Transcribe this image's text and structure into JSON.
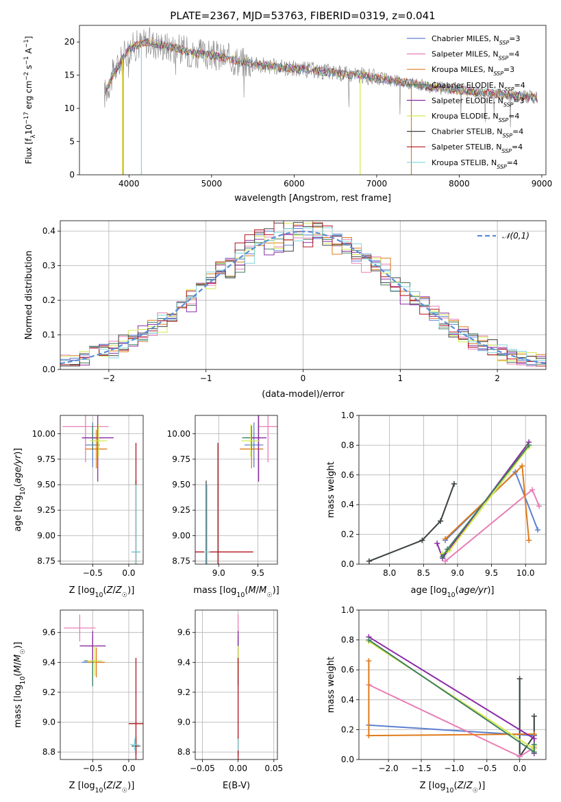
{
  "figure_title": "PLATE=2367, MJD=53763, FIBERID=0319, z=0.041",
  "colors": {
    "chabrier_miles": "#5b7fd0",
    "salpeter_miles": "#e87db5",
    "kroupa_miles": "#e07a1a",
    "chabrier_elodie": "#3f7f5f",
    "salpeter_elodie": "#8b2aa6",
    "kroupa_elodie": "#d4e84a",
    "chabrier_stelib": "#404040",
    "salpeter_stelib": "#b0101a",
    "kroupa_stelib": "#7fd4dc",
    "data": "#808080",
    "normal": "#5b8ad8",
    "grid": "#b0b0b0"
  },
  "chart_data": [
    {
      "id": "spectrum",
      "type": "line",
      "title": "PLATE=2367, MJD=53763, FIBERID=0319, z=0.041",
      "xlabel": "wavelength [Angstrom, rest frame]",
      "ylabel": "Flux [f_λ 10^-17 erg cm^-2 s^-1 A^-1]",
      "xlim": [
        3400,
        9050
      ],
      "ylim": [
        0,
        22.5
      ],
      "xticks": [
        "4000",
        "5000",
        "6000",
        "7000",
        "8000",
        "9000"
      ],
      "yticks": [
        "0",
        "5",
        "10",
        "15",
        "20"
      ],
      "grid": false,
      "legend_position": "top-right",
      "legend": [
        {
          "model": "Chabrier MILES",
          "nssp": "3",
          "color": "#5b7fd0"
        },
        {
          "model": "Salpeter MILES",
          "nssp": "4",
          "color": "#e87db5"
        },
        {
          "model": "Kroupa MILES",
          "nssp": "3",
          "color": "#e07a1a"
        },
        {
          "model": "Chabrier ELODIE",
          "nssp": "4",
          "color": "#3f7f5f"
        },
        {
          "model": "Salpeter ELODIE",
          "nssp": "3",
          "color": "#8b2aa6"
        },
        {
          "model": "Kroupa ELODIE",
          "nssp": "4",
          "color": "#d4e84a"
        },
        {
          "model": "Chabrier STELIB",
          "nssp": "4",
          "color": "#404040"
        },
        {
          "model": "Salpeter STELIB",
          "nssp": "4",
          "color": "#b0101a"
        },
        {
          "model": "Kroupa STELIB",
          "nssp": "4",
          "color": "#7fd4dc"
        }
      ],
      "continuum": {
        "x": [
          3700,
          3800,
          3900,
          4000,
          4100,
          4200,
          4300,
          4400,
          4600,
          4800,
          5000,
          5200,
          5400,
          5600,
          5800,
          6000,
          6200,
          6400,
          6600,
          6800,
          7000,
          7200,
          7400,
          7600,
          7800,
          8000,
          8200,
          8400,
          8600,
          8800,
          8950
        ],
        "y": [
          12,
          15,
          17,
          19,
          19.5,
          20,
          19.8,
          19.5,
          19,
          18.2,
          18,
          17.5,
          17,
          16.5,
          16.2,
          16,
          15.8,
          15.5,
          15.2,
          15,
          14.6,
          14.2,
          13.8,
          13.4,
          13,
          12.8,
          12.5,
          12.3,
          12,
          11.8,
          11.6
        ]
      },
      "model_cutoffs": [
        {
          "x": 3930,
          "color": "#e07a1a"
        },
        {
          "x": 3920,
          "color": "#d4e84a"
        },
        {
          "x": 4150,
          "color": "#7fd4dc"
        },
        {
          "x": 6800,
          "color": "#d4e84a"
        },
        {
          "x": 7420,
          "color": "#e07a1a"
        }
      ]
    },
    {
      "id": "residuals",
      "type": "histogram",
      "xlabel": "(data-model)/error",
      "ylabel": "Normed distribution",
      "xlim": [
        -2.5,
        2.5
      ],
      "ylim": [
        0,
        0.43
      ],
      "xticks": [
        "−2",
        "−1",
        "0",
        "1",
        "2"
      ],
      "yticks": [
        "0.0",
        "0.1",
        "0.2",
        "0.3",
        "0.4"
      ],
      "grid": true,
      "legend_position": "top-right",
      "legend_label": "𝒩(0,1)",
      "bin_width": 0.1
    },
    {
      "id": "age-vs-Z",
      "type": "scatter",
      "xlabel": "Z [log10(Z/Z☉)]",
      "ylabel": "age  [log10(age/yr)]",
      "xlim": [
        -0.95,
        0.2
      ],
      "ylim": [
        8.72,
        10.18
      ],
      "xticks": [
        "−0.5",
        "0.0"
      ],
      "yticks": [
        "8.75",
        "9.00",
        "9.25",
        "9.50",
        "9.75",
        "10.00"
      ],
      "grid": true,
      "points": [
        {
          "x": -0.5,
          "y": 9.89,
          "xerr": 0.1,
          "yerr": 0.22,
          "color": "#5b7fd0"
        },
        {
          "x": -0.6,
          "y": 10.07,
          "xerr": 0.32,
          "yerr": 0.35,
          "color": "#e87db5"
        },
        {
          "x": -0.45,
          "y": 9.85,
          "xerr": 0.15,
          "yerr": 0.19,
          "color": "#e07a1a"
        },
        {
          "x": -0.5,
          "y": 9.96,
          "xerr": 0.14,
          "yerr": 0.12,
          "color": "#3f7f5f"
        },
        {
          "x": -0.43,
          "y": 9.96,
          "xerr": 0.22,
          "yerr": 0.43,
          "color": "#8b2aa6"
        },
        {
          "x": -0.42,
          "y": 9.93,
          "xerr": 0.12,
          "yerr": 0.16,
          "color": "#d4e84a"
        },
        {
          "x": 0.1,
          "y": 8.84,
          "xerr": 0.06,
          "yerr": 0.7,
          "color": "#404040"
        },
        {
          "x": 0.1,
          "y": 8.84,
          "xerr": 0.03,
          "yerr": 1.07,
          "color": "#b0101a"
        },
        {
          "x": 0.1,
          "y": 8.84,
          "xerr": 0.06,
          "yerr": 0.66,
          "color": "#7fd4dc"
        }
      ]
    },
    {
      "id": "age-vs-mass",
      "type": "scatter",
      "xlabel": "mass [log10(M/M☉)]",
      "ylabel": "",
      "xlim": [
        8.7,
        9.75
      ],
      "ylim": [
        8.72,
        10.18
      ],
      "xticks": [
        "9.0",
        "9.5"
      ],
      "yticks": [
        "8.75",
        "9.00",
        "9.25",
        "9.50",
        "9.75",
        "10.00"
      ],
      "grid": true,
      "points": [
        {
          "x": 9.45,
          "y": 9.89,
          "xerr": 0.12,
          "yerr": 0.22,
          "color": "#5b7fd0"
        },
        {
          "x": 9.63,
          "y": 10.07,
          "xerr": 0.12,
          "yerr": 0.35,
          "color": "#e87db5"
        },
        {
          "x": 9.42,
          "y": 9.85,
          "xerr": 0.15,
          "yerr": 0.19,
          "color": "#e07a1a"
        },
        {
          "x": 9.42,
          "y": 9.96,
          "xerr": 0.12,
          "yerr": 0.12,
          "color": "#3f7f5f"
        },
        {
          "x": 9.51,
          "y": 9.96,
          "xerr": 0.1,
          "yerr": 0.43,
          "color": "#8b2aa6"
        },
        {
          "x": 9.41,
          "y": 9.93,
          "xerr": 0.12,
          "yerr": 0.16,
          "color": "#d4e84a"
        },
        {
          "x": 8.84,
          "y": 8.84,
          "xerr": 0.06,
          "yerr": 0.7,
          "color": "#404040"
        },
        {
          "x": 8.99,
          "y": 8.84,
          "xerr": 0.45,
          "yerr": 1.07,
          "color": "#b0101a"
        },
        {
          "x": 8.85,
          "y": 8.84,
          "xerr": 0.04,
          "yerr": 0.66,
          "color": "#7fd4dc"
        }
      ]
    },
    {
      "id": "mass-weight-vs-age",
      "type": "line",
      "xlabel": "age  [log10(age/yr)]",
      "ylabel": "mass weight",
      "xlim": [
        7.55,
        10.3
      ],
      "ylim": [
        0,
        1
      ],
      "xticks": [
        "8.0",
        "8.5",
        "9.0",
        "9.5",
        "10.0"
      ],
      "yticks": [
        "0.0",
        "0.2",
        "0.4",
        "0.6",
        "0.8",
        "1.0"
      ],
      "grid": true,
      "series": [
        {
          "color": "#7fd4dc",
          "x": [
            7.7,
            8.48,
            8.75,
            8.95
          ],
          "y": [
            0.02,
            0.16,
            0.29,
            0.54
          ]
        },
        {
          "color": "#404040",
          "x": [
            7.7,
            8.48,
            8.75,
            8.95
          ],
          "y": [
            0.02,
            0.16,
            0.29,
            0.54
          ]
        },
        {
          "color": "#5b7fd0",
          "x": [
            8.82,
            9.85,
            10.18
          ],
          "y": [
            0.16,
            0.62,
            0.23
          ]
        },
        {
          "color": "#e87db5",
          "x": [
            8.82,
            10.1,
            10.2
          ],
          "y": [
            0.02,
            0.5,
            0.39
          ]
        },
        {
          "color": "#e07a1a",
          "x": [
            8.82,
            9.95,
            10.05
          ],
          "y": [
            0.17,
            0.66,
            0.16
          ]
        },
        {
          "color": "#8b2aa6",
          "x": [
            8.7,
            8.78,
            10.05
          ],
          "y": [
            0.14,
            0.04,
            0.82
          ]
        },
        {
          "color": "#d4e84a",
          "x": [
            8.78,
            8.88,
            10.05
          ],
          "y": [
            0.07,
            0.09,
            0.79
          ]
        },
        {
          "color": "#3f7f5f",
          "x": [
            8.78,
            8.85,
            10.05
          ],
          "y": [
            0.05,
            0.1,
            0.8
          ]
        }
      ]
    },
    {
      "id": "mass-vs-Z",
      "type": "scatter",
      "xlabel": "Z [log10(Z/Z☉)]",
      "ylabel": "mass [log10(M/M☉)]",
      "xlim": [
        -0.95,
        0.2
      ],
      "ylim": [
        8.75,
        9.75
      ],
      "xticks": [
        "−0.5",
        "0.0"
      ],
      "yticks": [
        "8.8",
        "9.0",
        "9.2",
        "9.4",
        "9.6"
      ],
      "grid": true,
      "points": [
        {
          "x": -0.5,
          "y": 9.4,
          "xerr": 0.15,
          "yerr": 0.15,
          "color": "#5b7fd0"
        },
        {
          "x": -0.68,
          "y": 9.63,
          "xerr": 0.22,
          "yerr": 0.09,
          "color": "#e87db5"
        },
        {
          "x": -0.45,
          "y": 9.4,
          "xerr": 0.12,
          "yerr": 0.1,
          "color": "#e07a1a"
        },
        {
          "x": -0.5,
          "y": 9.41,
          "xerr": 0.12,
          "yerr": 0.17,
          "color": "#3f7f5f"
        },
        {
          "x": -0.5,
          "y": 9.51,
          "xerr": 0.18,
          "yerr": 0.1,
          "color": "#8b2aa6"
        },
        {
          "x": -0.47,
          "y": 9.41,
          "xerr": 0.1,
          "yerr": 0.1,
          "color": "#d4e84a"
        },
        {
          "x": 0.1,
          "y": 8.84,
          "xerr": 0.06,
          "yerr": 0.06,
          "color": "#404040"
        },
        {
          "x": 0.1,
          "y": 8.99,
          "xerr": 0.1,
          "yerr": 0.44,
          "color": "#b0101a"
        },
        {
          "x": 0.08,
          "y": 8.85,
          "xerr": 0.06,
          "yerr": 0.04,
          "color": "#7fd4dc"
        }
      ]
    },
    {
      "id": "mass-vs-EBV",
      "type": "scatter",
      "xlabel": "E(B-V)",
      "ylabel": "",
      "xlim": [
        -0.06,
        0.055
      ],
      "ylim": [
        8.75,
        9.75
      ],
      "xticks": [
        "−0.05",
        "0.00",
        "0.05"
      ],
      "yticks": [
        "8.8",
        "9.0",
        "9.2",
        "9.4",
        "9.6"
      ],
      "grid": true,
      "points": [
        {
          "x": 0,
          "y": 9.4,
          "xerr": 0,
          "yerr": 0.15,
          "color": "#5b7fd0"
        },
        {
          "x": 0,
          "y": 9.63,
          "xerr": 0,
          "yerr": 0.09,
          "color": "#e87db5"
        },
        {
          "x": 0,
          "y": 9.4,
          "xerr": 0,
          "yerr": 0.1,
          "color": "#e07a1a"
        },
        {
          "x": 0,
          "y": 9.41,
          "xerr": 0,
          "yerr": 0.17,
          "color": "#3f7f5f"
        },
        {
          "x": 0,
          "y": 9.51,
          "xerr": 0,
          "yerr": 0.1,
          "color": "#8b2aa6"
        },
        {
          "x": 0,
          "y": 9.41,
          "xerr": 0,
          "yerr": 0.1,
          "color": "#d4e84a"
        },
        {
          "x": 0,
          "y": 8.84,
          "xerr": 0,
          "yerr": 0.06,
          "color": "#404040"
        },
        {
          "x": 0,
          "y": 8.99,
          "xerr": 0,
          "yerr": 0.44,
          "color": "#b0101a"
        },
        {
          "x": 0,
          "y": 8.85,
          "xerr": 0,
          "yerr": 0.04,
          "color": "#7fd4dc"
        }
      ]
    },
    {
      "id": "mass-weight-vs-Z",
      "type": "line",
      "xlabel": "Z [log10(Z/Z☉)]",
      "ylabel": "mass weight",
      "xlim": [
        -2.45,
        0.4
      ],
      "ylim": [
        0,
        1
      ],
      "xticks": [
        "−2.0",
        "−1.5",
        "−1.0",
        "−0.5",
        "0.0"
      ],
      "yticks": [
        "0.0",
        "0.2",
        "0.4",
        "0.6",
        "0.8",
        "1.0"
      ],
      "grid": true,
      "series": [
        {
          "color": "#7fd4dc",
          "x": [
            0,
            0,
            0.22,
            0.22
          ],
          "y": [
            0.54,
            0.02,
            0.16,
            0.29
          ]
        },
        {
          "color": "#404040",
          "x": [
            0,
            0,
            0.22,
            0.22
          ],
          "y": [
            0.54,
            0.02,
            0.16,
            0.29
          ]
        },
        {
          "color": "#5b7fd0",
          "x": [
            -2.3,
            0.22,
            0.22
          ],
          "y": [
            0.23,
            0.16,
            0.16
          ]
        },
        {
          "color": "#e87db5",
          "x": [
            -2.3,
            0,
            0.22
          ],
          "y": [
            0.5,
            0.02,
            0.08
          ]
        },
        {
          "color": "#e07a1a",
          "x": [
            -2.3,
            -2.3,
            0.22
          ],
          "y": [
            0.66,
            0.16,
            0.17
          ]
        },
        {
          "color": "#8b2aa6",
          "x": [
            -2.3,
            0.22,
            0.22
          ],
          "y": [
            0.82,
            0.14,
            0.04
          ]
        },
        {
          "color": "#d4e84a",
          "x": [
            -2.3,
            0.22,
            0.22
          ],
          "y": [
            0.79,
            0.07,
            0.09
          ]
        },
        {
          "color": "#3f7f5f",
          "x": [
            -2.3,
            0.22,
            0.22
          ],
          "y": [
            0.8,
            0.05,
            0.1
          ]
        }
      ]
    }
  ]
}
